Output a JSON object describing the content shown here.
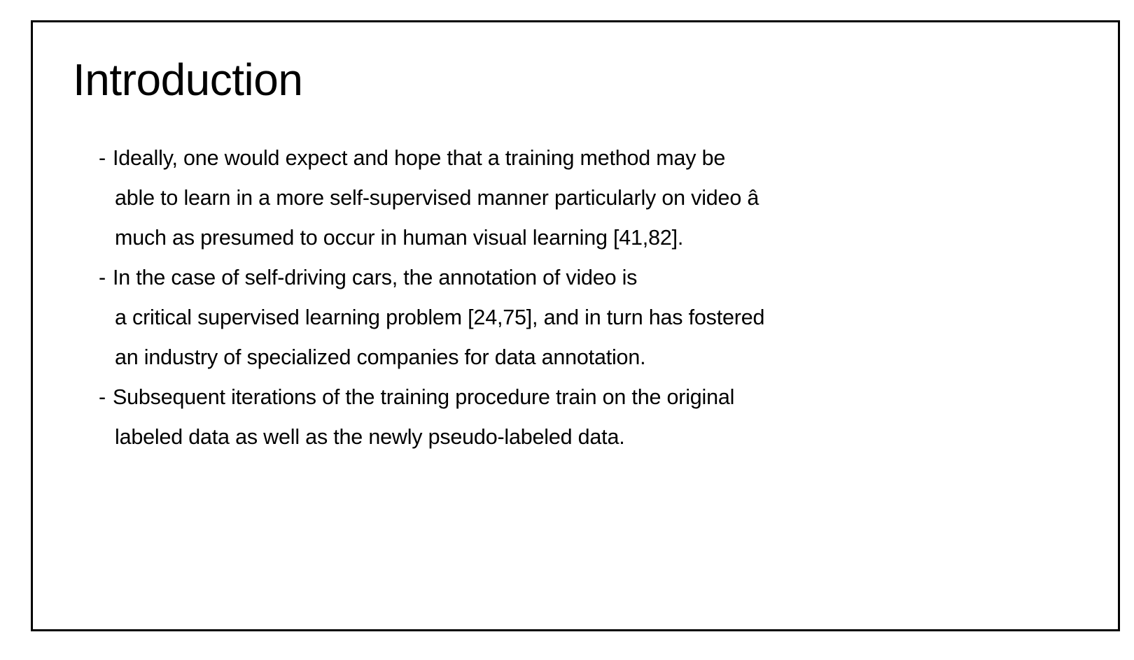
{
  "slide": {
    "title": "Introduction",
    "bullets": [
      {
        "marker": "- ",
        "lines": [
          "Ideally, one would expect and hope that a training method may be",
          "able to learn in a more self-supervised manner particularly on video â",
          "much as presumed to occur in human visual learning [41,82]."
        ]
      },
      {
        "marker": "- ",
        "lines": [
          "In the case of self-driving cars, the annotation of video is",
          "a critical supervised learning problem [24,75], and in turn has fostered",
          "an industry of specialized companies for data annotation."
        ]
      },
      {
        "marker": "- ",
        "lines": [
          "Subsequent iterations of the training procedure train on the original",
          "labeled data as well as the newly pseudo-labeled data."
        ]
      }
    ]
  }
}
